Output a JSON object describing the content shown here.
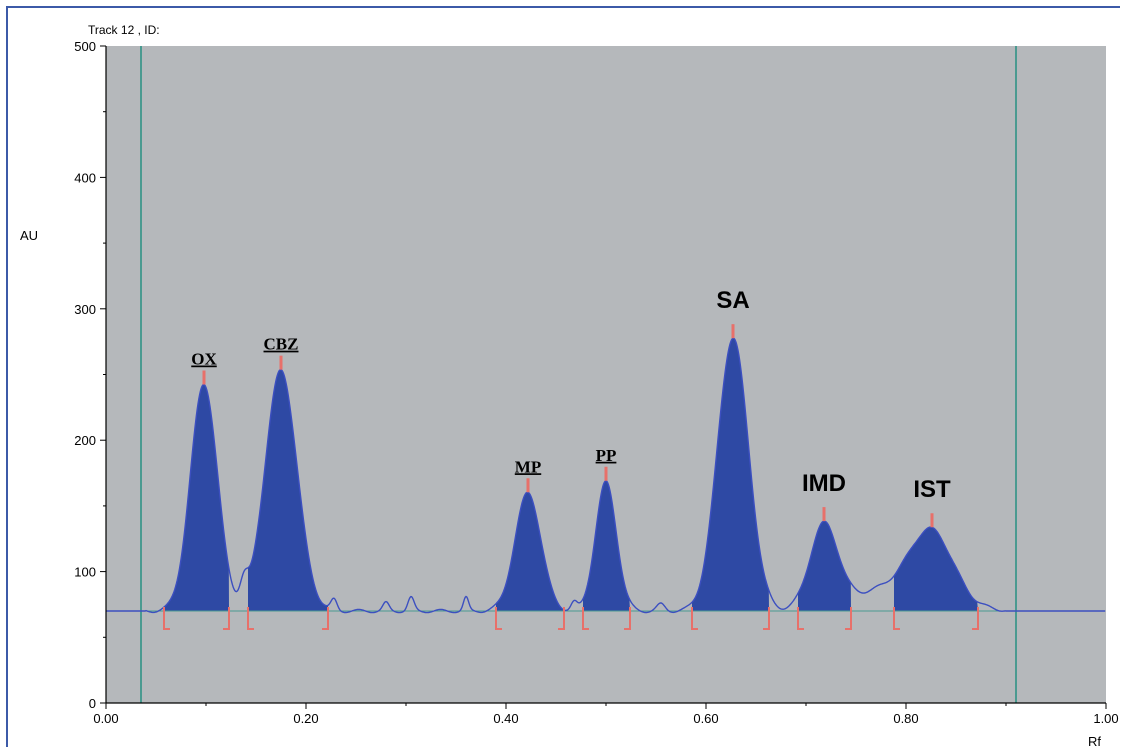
{
  "chart_data": {
    "type": "area",
    "title": "Track  12 , ID:",
    "xlabel": "Rf",
    "ylabel": "AU",
    "xlim": [
      0.0,
      1.0
    ],
    "ylim": [
      0,
      500
    ],
    "x_ticks": [
      "0.00",
      "0.20",
      "0.40",
      "0.60",
      "0.80",
      "1.00"
    ],
    "y_ticks": [
      "0",
      "100",
      "200",
      "300",
      "400",
      "500"
    ],
    "grid": false,
    "baseline": 70,
    "start_marker_rf": 0.035,
    "end_marker_rf": 0.91,
    "colors": {
      "plot_bg": "#b5b8bb",
      "fill": "#2e49a4",
      "line": "#3c4fc0",
      "marker": "#e8706a",
      "baseline": "#4a9a90",
      "frame": "#3c5aa8"
    },
    "peaks": [
      {
        "label": "OX",
        "rf": 0.098,
        "height": 243,
        "sigma": 0.0135,
        "start": 0.058,
        "end": 0.123,
        "style": "serif"
      },
      {
        "label": "CBZ",
        "rf": 0.175,
        "height": 253,
        "sigma": 0.016,
        "start": 0.142,
        "end": 0.222,
        "style": "serif"
      },
      {
        "label": "MP",
        "rf": 0.422,
        "height": 160,
        "sigma": 0.013,
        "start": 0.39,
        "end": 0.458,
        "style": "serif"
      },
      {
        "label": "PP",
        "rf": 0.5,
        "height": 168,
        "sigma": 0.0105,
        "start": 0.477,
        "end": 0.524,
        "style": "serif"
      },
      {
        "label": "SA",
        "rf": 0.627,
        "height": 278,
        "sigma": 0.0155,
        "start": 0.586,
        "end": 0.663,
        "style": "sans"
      },
      {
        "label": "IMD",
        "rf": 0.718,
        "height": 133,
        "sigma": 0.014,
        "start": 0.692,
        "end": 0.745,
        "style": "sans"
      },
      {
        "label": "IST",
        "rf": 0.826,
        "height": 120,
        "sigma": 0.021,
        "start": 0.788,
        "end": 0.872,
        "style": "sans"
      }
    ]
  }
}
